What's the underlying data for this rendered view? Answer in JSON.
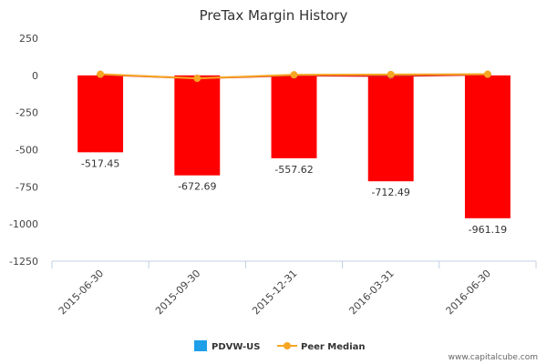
{
  "chart_data": {
    "type": "bar",
    "title": "PreTax Margin History",
    "categories": [
      "2015-06-30",
      "2015-09-30",
      "2015-12-31",
      "2016-03-31",
      "2016-06-30"
    ],
    "series": [
      {
        "name": "PDVW-US",
        "type": "bar",
        "values": [
          -517.45,
          -672.69,
          -557.62,
          -712.49,
          -961.19
        ],
        "color": "#ff0000",
        "legend_color": "#1e9fe8"
      },
      {
        "name": "",
        "type": "line",
        "values": [
          5,
          -20,
          0,
          -5,
          5
        ],
        "color": "#dd2222"
      },
      {
        "name": "Peer Median",
        "type": "line",
        "values": [
          8,
          -20,
          4,
          6,
          8
        ],
        "color": "#f5a623"
      }
    ],
    "data_labels": [
      "-517.45",
      "-672.69",
      "-557.62",
      "-712.49",
      "-961.19"
    ],
    "yticks": [
      250,
      0,
      -250,
      -500,
      -750,
      -1000,
      -1250
    ],
    "ytick_labels": [
      "250",
      "0",
      "-250",
      "-500",
      "-750",
      "-1000",
      "-1250"
    ],
    "ylim": [
      -1250,
      250
    ],
    "grid": false,
    "legend_position": "bottom-center",
    "xlabel": "",
    "ylabel": ""
  },
  "watermark": "www.capitalcube.com"
}
